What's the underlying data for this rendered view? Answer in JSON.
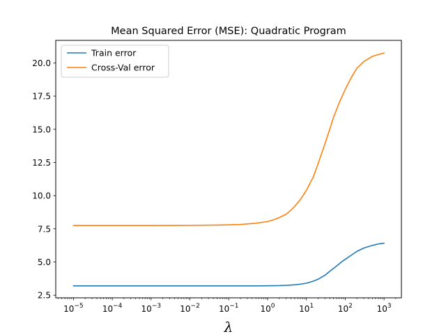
{
  "chart_data": {
    "type": "line",
    "title": "Mean Squared Error (MSE): Quadratic Program",
    "xlabel": "λ",
    "ylabel": "",
    "xscale": "log",
    "xlim": [
      3.5e-06,
      2800
    ],
    "ylim": [
      2.3,
      21.7
    ],
    "xtick_base": "10",
    "xticks": [
      {
        "value": 1e-05,
        "exp": "−5"
      },
      {
        "value": 0.0001,
        "exp": "−4"
      },
      {
        "value": 0.001,
        "exp": "−3"
      },
      {
        "value": 0.01,
        "exp": "−2"
      },
      {
        "value": 0.1,
        "exp": "−1"
      },
      {
        "value": 1,
        "exp": "0"
      },
      {
        "value": 10,
        "exp": "1"
      },
      {
        "value": 100,
        "exp": "2"
      },
      {
        "value": 1000,
        "exp": "3"
      }
    ],
    "yticks": [
      {
        "value": 2.5,
        "label": "2.5"
      },
      {
        "value": 5.0,
        "label": "5.0"
      },
      {
        "value": 7.5,
        "label": "7.5"
      },
      {
        "value": 10.0,
        "label": "10.0"
      },
      {
        "value": 12.5,
        "label": "12.5"
      },
      {
        "value": 15.0,
        "label": "15.0"
      },
      {
        "value": 17.5,
        "label": "17.5"
      },
      {
        "value": 20.0,
        "label": "20.0"
      }
    ],
    "grid": false,
    "legend_position": "upper-left",
    "series": [
      {
        "name": "Train error",
        "color": "#1f77b4",
        "points": [
          [
            1e-05,
            3.2
          ],
          [
            0.0001,
            3.2
          ],
          [
            0.001,
            3.2
          ],
          [
            0.01,
            3.2
          ],
          [
            0.1,
            3.2
          ],
          [
            0.5,
            3.2
          ],
          [
            1,
            3.21
          ],
          [
            2,
            3.22
          ],
          [
            3,
            3.24
          ],
          [
            5,
            3.28
          ],
          [
            7,
            3.33
          ],
          [
            10,
            3.4
          ],
          [
            15,
            3.55
          ],
          [
            20,
            3.7
          ],
          [
            30,
            4.0
          ],
          [
            40,
            4.3
          ],
          [
            60,
            4.7
          ],
          [
            80,
            5.0
          ],
          [
            100,
            5.2
          ],
          [
            150,
            5.55
          ],
          [
            200,
            5.8
          ],
          [
            300,
            6.05
          ],
          [
            500,
            6.25
          ],
          [
            700,
            6.35
          ],
          [
            1000,
            6.42
          ]
        ]
      },
      {
        "name": "Cross-Val error",
        "color": "#ff7f0e",
        "points": [
          [
            1e-05,
            7.75
          ],
          [
            0.0001,
            7.75
          ],
          [
            0.001,
            7.75
          ],
          [
            0.01,
            7.76
          ],
          [
            0.05,
            7.78
          ],
          [
            0.1,
            7.8
          ],
          [
            0.2,
            7.83
          ],
          [
            0.5,
            7.92
          ],
          [
            1,
            8.05
          ],
          [
            1.5,
            8.2
          ],
          [
            2,
            8.35
          ],
          [
            3,
            8.6
          ],
          [
            4,
            8.9
          ],
          [
            5,
            9.2
          ],
          [
            7,
            9.7
          ],
          [
            10,
            10.4
          ],
          [
            15,
            11.4
          ],
          [
            20,
            12.4
          ],
          [
            30,
            13.9
          ],
          [
            40,
            15.0
          ],
          [
            50,
            15.9
          ],
          [
            70,
            17.0
          ],
          [
            100,
            18.0
          ],
          [
            150,
            19.0
          ],
          [
            200,
            19.6
          ],
          [
            300,
            20.1
          ],
          [
            500,
            20.5
          ],
          [
            1000,
            20.75
          ]
        ]
      }
    ]
  }
}
